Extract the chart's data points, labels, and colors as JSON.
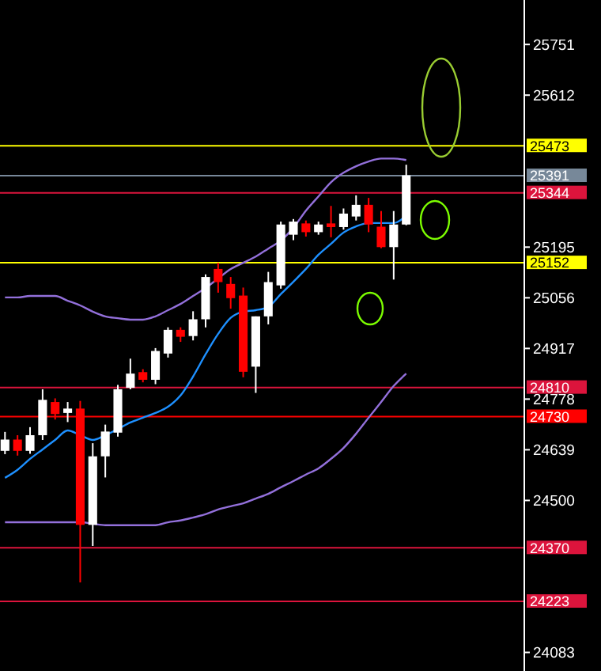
{
  "chart_data": {
    "type": "candlestick",
    "categories": [
      null,
      null,
      null,
      null,
      null,
      null,
      null,
      null,
      null,
      null,
      null,
      null,
      null,
      null,
      null,
      null,
      null,
      null,
      null,
      null,
      null,
      null,
      null,
      null,
      null,
      null,
      null,
      null,
      null,
      null,
      null,
      null,
      null
    ],
    "ohlc": [
      [
        24636,
        24688,
        24627,
        24667
      ],
      [
        24667,
        24679,
        24623,
        24636
      ],
      [
        24636,
        24701,
        24628,
        24679
      ],
      [
        24679,
        24805,
        24666,
        24776
      ],
      [
        24770,
        24780,
        24722,
        24737
      ],
      [
        24740,
        24770,
        24715,
        24752
      ],
      [
        24752,
        24773,
        24275,
        24433
      ],
      [
        24433,
        24657,
        24375,
        24621
      ],
      [
        24621,
        24708,
        24563,
        24689
      ],
      [
        24686,
        24817,
        24675,
        24805
      ],
      [
        24809,
        24889,
        24805,
        24848
      ],
      [
        24852,
        24860,
        24824,
        24831
      ],
      [
        24831,
        24918,
        24819,
        24910
      ],
      [
        24903,
        24975,
        24892,
        24968
      ],
      [
        24968,
        24975,
        24935,
        24949
      ],
      [
        24951,
        25019,
        24939,
        24997
      ],
      [
        24997,
        25120,
        24975,
        25113
      ],
      [
        25135,
        25152,
        25070,
        25099
      ],
      [
        25094,
        25113,
        25026,
        25055
      ],
      [
        25062,
        25084,
        24838,
        24853
      ],
      [
        24867,
        25005,
        24795,
        25005
      ],
      [
        25005,
        25127,
        24983,
        25099
      ],
      [
        25090,
        25265,
        25081,
        25257
      ],
      [
        25229,
        25272,
        25214,
        25265
      ],
      [
        25260,
        25268,
        25224,
        25236
      ],
      [
        25236,
        25265,
        25229,
        25257
      ],
      [
        25260,
        25308,
        25222,
        25250
      ],
      [
        25250,
        25301,
        25243,
        25287
      ],
      [
        25279,
        25337,
        25268,
        25311
      ],
      [
        25311,
        25330,
        25236,
        25257
      ],
      [
        25251,
        25294,
        25192,
        25195
      ],
      [
        25195,
        25294,
        25106,
        25257
      ],
      [
        25257,
        25421,
        25255,
        25392
      ]
    ],
    "colors": [
      "#ffffff",
      "#ff0000",
      "#ffffff",
      "#ffffff",
      "#ff0000",
      "#ffffff",
      "#ff0000",
      "#ffffff",
      "#ffffff",
      "#ffffff",
      "#ffffff",
      "#ff0000",
      "#ffffff",
      "#ffffff",
      "#ff0000",
      "#ffffff",
      "#ffffff",
      "#ff0000",
      "#ff0000",
      "#ff0000",
      "#ffffff",
      "#ffffff",
      "#ffffff",
      "#ffffff",
      "#ff0000",
      "#ffffff",
      "#ff0000",
      "#ffffff",
      "#ffffff",
      "#ff0000",
      "#ff0000",
      "#ffffff",
      "#ffffff"
    ],
    "series": [
      {
        "type": "line",
        "color": "#1e90ff",
        "values": [
          24562,
          24584,
          24614,
          24640,
          24666,
          24692,
          24679,
          24666,
          24679,
          24696,
          24714,
          24727,
          24740,
          24757,
          24788,
          24840,
          24901,
          24957,
          25001,
          25018,
          25022,
          25031,
          25066,
          25100,
          25135,
          25174,
          25204,
          25235,
          25252,
          25261,
          25261,
          25261,
          25282
        ]
      },
      {
        "type": "line",
        "color": "#9370db",
        "values": [
          25057,
          25057,
          25061,
          25061,
          25061,
          25048,
          25035,
          25018,
          25005,
          25000,
          24996,
          24996,
          25005,
          25022,
          25039,
          25061,
          25083,
          25109,
          25135,
          25152,
          25169,
          25191,
          25213,
          25248,
          25295,
          25334,
          25373,
          25399,
          25417,
          25430,
          25438,
          25438,
          25434
        ]
      },
      {
        "type": "line",
        "color": "#9370db",
        "values": [
          24440,
          24440,
          24440,
          24440,
          24440,
          24440,
          24440,
          24436,
          24432,
          24432,
          24432,
          24432,
          24432,
          24440,
          24445,
          24453,
          24462,
          24475,
          24484,
          24492,
          24505,
          24518,
          24536,
          24553,
          24571,
          24588,
          24614,
          24644,
          24683,
          24727,
          24770,
          24814,
          24848
        ]
      }
    ],
    "ylim": [
      24032,
      25873
    ],
    "yticks": [
      25751,
      25612,
      25195,
      25056,
      24917,
      24778,
      24639,
      24500,
      24083
    ],
    "tick_labels": "y",
    "ref_lines": [
      {
        "axis": "y",
        "value": 25473,
        "label": "25473",
        "color": "#ffff00"
      },
      {
        "axis": "y",
        "value": 25391,
        "label": "25391",
        "color": "#778899"
      },
      {
        "axis": "y",
        "value": 25344,
        "label": "25344",
        "color": "#dc143c"
      },
      {
        "axis": "y",
        "value": 25152,
        "label": "25152",
        "color": "#ffff00"
      },
      {
        "axis": "y",
        "value": 24810,
        "label": "24810",
        "color": "#dc143c"
      },
      {
        "axis": "y",
        "value": 24730,
        "label": "24730",
        "color": "#ff0000"
      },
      {
        "axis": "y",
        "value": 24370,
        "label": "24370",
        "color": "#dc143c"
      },
      {
        "axis": "y",
        "value": 24223,
        "label": "24223",
        "color": "#dc143c"
      }
    ]
  }
}
